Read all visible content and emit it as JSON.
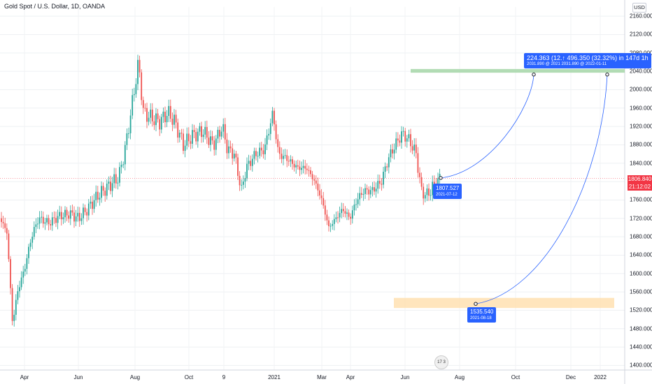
{
  "header": {
    "title": "Gold Spot / U.S. Dollar, 1D, OANDA",
    "currency": "USD"
  },
  "price": {
    "last": "1806.840",
    "countdown": "21:12:02"
  },
  "event_badge": "17 3",
  "chart_data": {
    "type": "candlestick",
    "y_ticks": [
      "2160.000",
      "2120.000",
      "2080.000",
      "2040.000",
      "2000.000",
      "1960.000",
      "1920.000",
      "1880.000",
      "1840.000",
      "1800.000",
      "1760.000",
      "1720.000",
      "1680.000",
      "1640.000",
      "1600.000",
      "1560.000",
      "1520.000",
      "1480.000",
      "1440.000",
      "1400.000"
    ],
    "y_range": [
      1390,
      2180
    ],
    "x_ticks": [
      {
        "label": "Apr",
        "x": 35
      },
      {
        "label": "Jun",
        "x": 112
      },
      {
        "label": "Aug",
        "x": 193
      },
      {
        "label": "Oct",
        "x": 270
      },
      {
        "label": "9",
        "x": 320
      },
      {
        "label": "2021",
        "x": 392
      },
      {
        "label": "Mar",
        "x": 460
      },
      {
        "label": "Apr",
        "x": 501
      },
      {
        "label": "Jun",
        "x": 579
      },
      {
        "label": "Aug",
        "x": 657
      },
      {
        "label": "Oct",
        "x": 737
      },
      {
        "label": "Dec",
        "x": 816
      },
      {
        "label": "2022",
        "x": 858
      }
    ],
    "price_path": [
      [
        0,
        1720
      ],
      [
        10,
        1690
      ],
      [
        18,
        1490
      ],
      [
        25,
        1560
      ],
      [
        35,
        1610
      ],
      [
        45,
        1680
      ],
      [
        55,
        1720
      ],
      [
        70,
        1710
      ],
      [
        85,
        1725
      ],
      [
        100,
        1730
      ],
      [
        112,
        1720
      ],
      [
        125,
        1740
      ],
      [
        140,
        1770
      ],
      [
        155,
        1790
      ],
      [
        170,
        1810
      ],
      [
        180,
        1880
      ],
      [
        188,
        1960
      ],
      [
        198,
        2060
      ],
      [
        205,
        1950
      ],
      [
        215,
        1940
      ],
      [
        228,
        1930
      ],
      [
        240,
        1950
      ],
      [
        250,
        1930
      ],
      [
        262,
        1880
      ],
      [
        275,
        1900
      ],
      [
        290,
        1910
      ],
      [
        305,
        1880
      ],
      [
        318,
        1920
      ],
      [
        325,
        1870
      ],
      [
        335,
        1860
      ],
      [
        345,
        1780
      ],
      [
        352,
        1830
      ],
      [
        365,
        1860
      ],
      [
        378,
        1870
      ],
      [
        390,
        1950
      ],
      [
        398,
        1860
      ],
      [
        410,
        1850
      ],
      [
        425,
        1830
      ],
      [
        438,
        1830
      ],
      [
        450,
        1800
      ],
      [
        460,
        1760
      ],
      [
        470,
        1700
      ],
      [
        480,
        1720
      ],
      [
        490,
        1740
      ],
      [
        500,
        1720
      ],
      [
        510,
        1760
      ],
      [
        520,
        1780
      ],
      [
        532,
        1780
      ],
      [
        545,
        1800
      ],
      [
        555,
        1850
      ],
      [
        565,
        1880
      ],
      [
        575,
        1905
      ],
      [
        585,
        1890
      ],
      [
        595,
        1860
      ],
      [
        602,
        1780
      ],
      [
        610,
        1770
      ],
      [
        620,
        1790
      ],
      [
        630,
        1808
      ]
    ],
    "last_price_level": 1806.84,
    "zones": [
      {
        "name": "target",
        "x1": 587,
        "x2": 893,
        "y1": 2045,
        "y2": 2037,
        "color": "#a5d6a7"
      },
      {
        "name": "support",
        "x1": 563,
        "x2": 878,
        "y1": 1547,
        "y2": 1525,
        "color": "#ffe0b2"
      }
    ],
    "projection_labels": {
      "start": {
        "price": "1807.527",
        "date": "2021-07-12"
      },
      "low": {
        "price": "1535.540",
        "date": "2021-08-18"
      },
      "target": {
        "line1": "224.363 (12.↑ 496.350 (32.32%) in 147d 1h",
        "line2": "2031.890 @ 2021  2031.890 @ 2022-01-11"
      }
    }
  }
}
